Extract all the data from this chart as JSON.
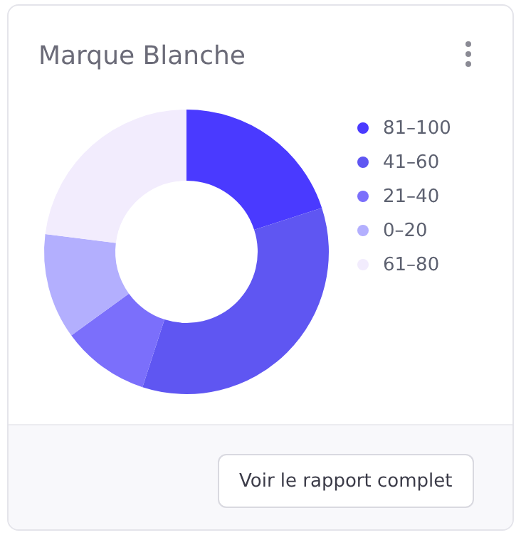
{
  "chart_data": {
    "type": "donut",
    "title": "Marque Blanche",
    "categories": [
      "81–100",
      "41–60",
      "21–40",
      "0–20",
      "61–80"
    ],
    "values": [
      20,
      35,
      10,
      12,
      23
    ],
    "colors": [
      "#4a3aff",
      "#5f56f2",
      "#7b6ffb",
      "#b3affe",
      "#f2ecfd"
    ],
    "legend": "right",
    "annotations": [
      "Voir le rapport complet"
    ]
  }
}
